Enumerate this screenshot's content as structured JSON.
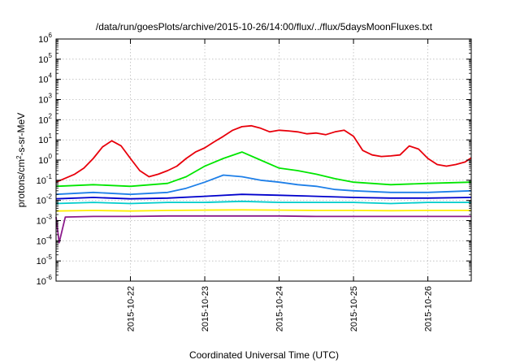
{
  "chart_data": {
    "type": "line",
    "title": "/data/run/goesPlots/archive/2015-10-26/14:00/flux/../flux/5daysMoonFluxes.txt",
    "xlabel": "Coordinated Universal Time (UTC)",
    "ylabel": "protons/cm²-s-sr-MeV",
    "ylabel_parts": {
      "base": "protons/cm",
      "sup": "2",
      "rest": "-s-sr-MeV"
    },
    "y_scale": "log",
    "ylim": [
      1e-06,
      1000000.0
    ],
    "xlim": [
      "2015-10-21T00:00",
      "2015-10-26T14:00"
    ],
    "grid": true,
    "x_ticks": [
      "2015-10-22",
      "2015-10-23",
      "2015-10-24",
      "2015-10-25",
      "2015-10-26"
    ],
    "y_ticks": [
      {
        "base": "10",
        "exp": "-6",
        "value": 1e-06
      },
      {
        "base": "10",
        "exp": "-5",
        "value": 1e-05
      },
      {
        "base": "10",
        "exp": "-4",
        "value": 0.0001
      },
      {
        "base": "10",
        "exp": "-3",
        "value": 0.001
      },
      {
        "base": "10",
        "exp": "-2",
        "value": 0.01
      },
      {
        "base": "10",
        "exp": "-1",
        "value": 0.1
      },
      {
        "base": "10",
        "exp": "0",
        "value": 1
      },
      {
        "base": "10",
        "exp": "1",
        "value": 10
      },
      {
        "base": "10",
        "exp": "2",
        "value": 100
      },
      {
        "base": "10",
        "exp": "3",
        "value": 1000
      },
      {
        "base": "10",
        "exp": "4",
        "value": 10000
      },
      {
        "base": "10",
        "exp": "5",
        "value": 100000
      },
      {
        "base": "10",
        "exp": "6",
        "value": 1000000
      }
    ],
    "series": [
      {
        "color": "#e8000b",
        "x": [
          "2015-10-21T00:00",
          "2015-10-21T06:00",
          "2015-10-21T09:00",
          "2015-10-21T12:00",
          "2015-10-21T15:00",
          "2015-10-21T18:00",
          "2015-10-21T21:00",
          "2015-10-22T00:00",
          "2015-10-22T03:00",
          "2015-10-22T06:00",
          "2015-10-22T09:00",
          "2015-10-22T12:00",
          "2015-10-22T15:00",
          "2015-10-22T18:00",
          "2015-10-22T21:00",
          "2015-10-23T00:00",
          "2015-10-23T03:00",
          "2015-10-23T06:00",
          "2015-10-23T09:00",
          "2015-10-23T12:00",
          "2015-10-23T15:00",
          "2015-10-23T18:00",
          "2015-10-23T21:00",
          "2015-10-24T00:00",
          "2015-10-24T03:00",
          "2015-10-24T06:00",
          "2015-10-24T09:00",
          "2015-10-24T12:00",
          "2015-10-24T15:00",
          "2015-10-24T18:00",
          "2015-10-24T21:00",
          "2015-10-25T00:00",
          "2015-10-25T03:00",
          "2015-10-25T06:00",
          "2015-10-25T09:00",
          "2015-10-25T12:00",
          "2015-10-25T15:00",
          "2015-10-25T18:00",
          "2015-10-25T21:00",
          "2015-10-26T00:00",
          "2015-10-26T03:00",
          "2015-10-26T06:00",
          "2015-10-26T09:00",
          "2015-10-26T12:00",
          "2015-10-26T14:00"
        ],
        "y": [
          0.08,
          0.2,
          0.4,
          1.2,
          4.5,
          9,
          5,
          1.2,
          0.3,
          0.15,
          0.2,
          0.3,
          0.5,
          1.2,
          2.5,
          4,
          8,
          15,
          30,
          45,
          50,
          38,
          25,
          30,
          28,
          25,
          20,
          22,
          18,
          25,
          30,
          15,
          3,
          1.8,
          1.5,
          1.6,
          1.8,
          5,
          3.5,
          1.2,
          0.6,
          0.5,
          0.6,
          0.8,
          1.3
        ]
      },
      {
        "color": "#00e600",
        "x": [
          "2015-10-21T00:00",
          "2015-10-21T12:00",
          "2015-10-22T00:00",
          "2015-10-22T12:00",
          "2015-10-22T18:00",
          "2015-10-23T00:00",
          "2015-10-23T06:00",
          "2015-10-23T12:00",
          "2015-10-23T18:00",
          "2015-10-24T00:00",
          "2015-10-24T06:00",
          "2015-10-24T12:00",
          "2015-10-24T18:00",
          "2015-10-25T00:00",
          "2015-10-25T12:00",
          "2015-10-26T00:00",
          "2015-10-26T14:00"
        ],
        "y": [
          0.05,
          0.06,
          0.05,
          0.07,
          0.15,
          0.5,
          1.2,
          2.5,
          1.0,
          0.4,
          0.3,
          0.2,
          0.12,
          0.08,
          0.06,
          0.07,
          0.08
        ]
      },
      {
        "color": "#1e7fe8",
        "x": [
          "2015-10-21T00:00",
          "2015-10-21T12:00",
          "2015-10-22T00:00",
          "2015-10-22T12:00",
          "2015-10-22T18:00",
          "2015-10-23T00:00",
          "2015-10-23T06:00",
          "2015-10-23T12:00",
          "2015-10-23T18:00",
          "2015-10-24T00:00",
          "2015-10-24T06:00",
          "2015-10-24T12:00",
          "2015-10-24T18:00",
          "2015-10-25T00:00",
          "2015-10-25T12:00",
          "2015-10-26T00:00",
          "2015-10-26T14:00"
        ],
        "y": [
          0.02,
          0.025,
          0.02,
          0.025,
          0.04,
          0.08,
          0.18,
          0.15,
          0.1,
          0.08,
          0.06,
          0.05,
          0.035,
          0.03,
          0.025,
          0.025,
          0.03
        ]
      },
      {
        "color": "#0000cc",
        "x": [
          "2015-10-21T00:00",
          "2015-10-21T12:00",
          "2015-10-22T00:00",
          "2015-10-22T12:00",
          "2015-10-23T00:00",
          "2015-10-23T12:00",
          "2015-10-24T00:00",
          "2015-10-24T12:00",
          "2015-10-25T00:00",
          "2015-10-25T12:00",
          "2015-10-26T00:00",
          "2015-10-26T14:00"
        ],
        "y": [
          0.012,
          0.014,
          0.012,
          0.013,
          0.016,
          0.02,
          0.018,
          0.016,
          0.014,
          0.013,
          0.013,
          0.014
        ]
      },
      {
        "color": "#00cccc",
        "x": [
          "2015-10-21T00:00",
          "2015-10-21T12:00",
          "2015-10-22T00:00",
          "2015-10-22T12:00",
          "2015-10-23T00:00",
          "2015-10-23T12:00",
          "2015-10-24T00:00",
          "2015-10-24T12:00",
          "2015-10-25T00:00",
          "2015-10-25T12:00",
          "2015-10-26T00:00",
          "2015-10-26T14:00"
        ],
        "y": [
          0.007,
          0.008,
          0.007,
          0.008,
          0.008,
          0.009,
          0.008,
          0.008,
          0.008,
          0.007,
          0.008,
          0.008
        ]
      },
      {
        "color": "#ffee00",
        "x": [
          "2015-10-21T00:00",
          "2015-10-21T12:00",
          "2015-10-22T00:00",
          "2015-10-22T12:00",
          "2015-10-23T00:00",
          "2015-10-23T12:00",
          "2015-10-24T00:00",
          "2015-10-24T12:00",
          "2015-10-25T00:00",
          "2015-10-25T12:00",
          "2015-10-26T00:00",
          "2015-10-26T14:00"
        ],
        "y": [
          0.003,
          0.0032,
          0.003,
          0.0032,
          0.0033,
          0.0034,
          0.0033,
          0.0032,
          0.0032,
          0.0031,
          0.0032,
          0.0032
        ]
      },
      {
        "color": "#8b1a8b",
        "x": [
          "2015-10-21T00:00",
          "2015-10-21T01:00",
          "2015-10-21T03:00",
          "2015-10-21T12:00",
          "2015-10-22T00:00",
          "2015-10-22T12:00",
          "2015-10-23T00:00",
          "2015-10-23T12:00",
          "2015-10-24T00:00",
          "2015-10-24T12:00",
          "2015-10-25T00:00",
          "2015-10-25T12:00",
          "2015-10-26T00:00",
          "2015-10-26T14:00"
        ],
        "y": [
          0.0015,
          8e-05,
          0.0015,
          0.0016,
          0.0016,
          0.0017,
          0.0017,
          0.0017,
          0.0017,
          0.0016,
          0.0016,
          0.0016,
          0.0016,
          0.0016
        ]
      }
    ]
  }
}
